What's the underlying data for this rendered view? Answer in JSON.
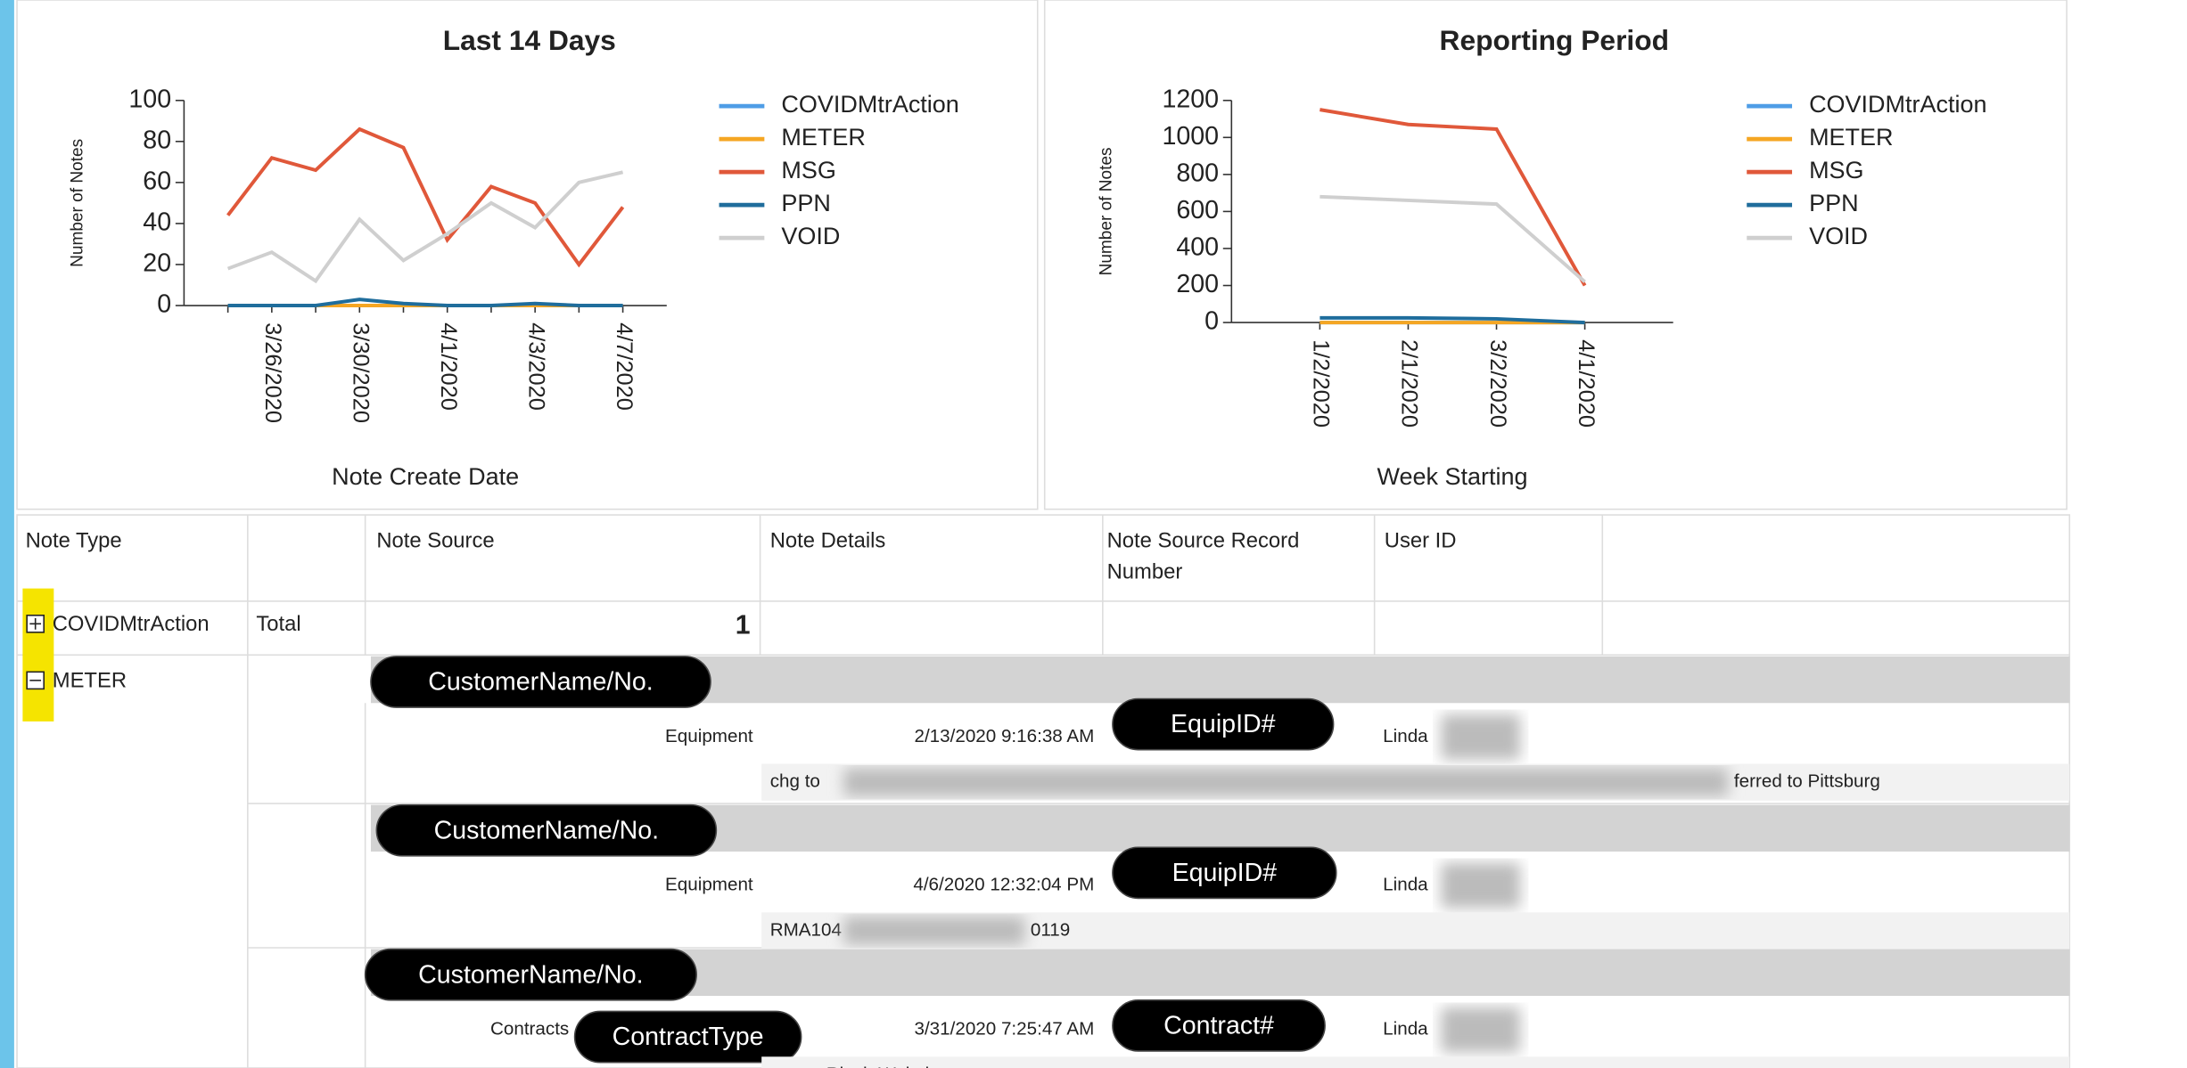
{
  "chart_data": [
    {
      "type": "line",
      "title": "Last 14 Days",
      "xlabel": "Note Create Date",
      "ylabel": "Number of Notes",
      "categories": [
        null,
        "3/26/2020",
        null,
        "3/30/2020",
        null,
        "4/1/2020",
        null,
        "4/3/2020",
        null,
        "4/7/2020"
      ],
      "series": [
        {
          "name": "COVIDMtrAction",
          "color": "#4e9de6",
          "values": [
            0,
            0,
            0,
            0,
            0,
            0,
            0,
            0,
            0,
            0
          ]
        },
        {
          "name": "METER",
          "color": "#f5a623",
          "values": [
            0,
            0,
            0,
            0,
            0,
            0,
            0,
            0,
            0,
            0
          ]
        },
        {
          "name": "MSG",
          "color": "#e0583a",
          "values": [
            44,
            72,
            66,
            86,
            77,
            32,
            58,
            50,
            20,
            48
          ]
        },
        {
          "name": "PPN",
          "color": "#1f6d9c",
          "values": [
            0,
            0,
            0,
            3,
            1,
            0,
            0,
            1,
            0,
            0
          ]
        },
        {
          "name": "VOID",
          "color": "#cfcfcf",
          "values": [
            18,
            26,
            12,
            42,
            22,
            35,
            50,
            38,
            60,
            65
          ]
        }
      ],
      "ylim": [
        0,
        100
      ],
      "yticks": [
        0,
        20,
        40,
        60,
        80,
        100
      ],
      "grid": false,
      "legend": "right"
    },
    {
      "type": "line",
      "title": "Reporting Period",
      "xlabel": "Week Starting",
      "ylabel": "Number of Notes",
      "categories": [
        "1/2/2020",
        "2/1/2020",
        "3/2/2020",
        "4/1/2020"
      ],
      "series": [
        {
          "name": "COVIDMtrAction",
          "color": "#4e9de6",
          "values": [
            0,
            0,
            0,
            0
          ]
        },
        {
          "name": "METER",
          "color": "#f5a623",
          "values": [
            0,
            0,
            0,
            0
          ]
        },
        {
          "name": "MSG",
          "color": "#e0583a",
          "values": [
            1150,
            1070,
            1045,
            200
          ]
        },
        {
          "name": "PPN",
          "color": "#1f6d9c",
          "values": [
            25,
            25,
            20,
            0
          ]
        },
        {
          "name": "VOID",
          "color": "#cfcfcf",
          "values": [
            680,
            660,
            640,
            220
          ]
        }
      ],
      "ylim": [
        0,
        1200
      ],
      "yticks": [
        0,
        200,
        400,
        600,
        800,
        1000,
        1200
      ],
      "grid": false,
      "legend": "right"
    }
  ],
  "table": {
    "headers": [
      "Note Type",
      "Note Source",
      "Note Details",
      "Note Source Record Number",
      "User ID"
    ],
    "groups": [
      {
        "type": "COVIDMtrAction",
        "total_label": "Total",
        "total": 1
      },
      {
        "type": "METER",
        "records": [
          {
            "customer": "CustomerName/No.",
            "source": "Equipment",
            "date": "2/13/2020 9:16:38 AM",
            "record": "EquipID#",
            "user": "Linda",
            "details": [
              "chg to",
              "ferred to Pittsburg"
            ]
          },
          {
            "customer": "CustomerName/No.",
            "source": "Equipment",
            "date": "4/6/2020 12:32:04 PM",
            "record": "EquipID#",
            "user": "Linda",
            "details": [
              "RMA104",
              "0119"
            ]
          },
          {
            "customer": "CustomerName/No.",
            "source": "Contracts",
            "source_type": "ContractType",
            "date": "3/31/2020 7:25:47 AM",
            "record": "Contract#",
            "user": "Linda",
            "details": [
              "not on Ricoh Website"
            ]
          }
        ]
      }
    ]
  }
}
